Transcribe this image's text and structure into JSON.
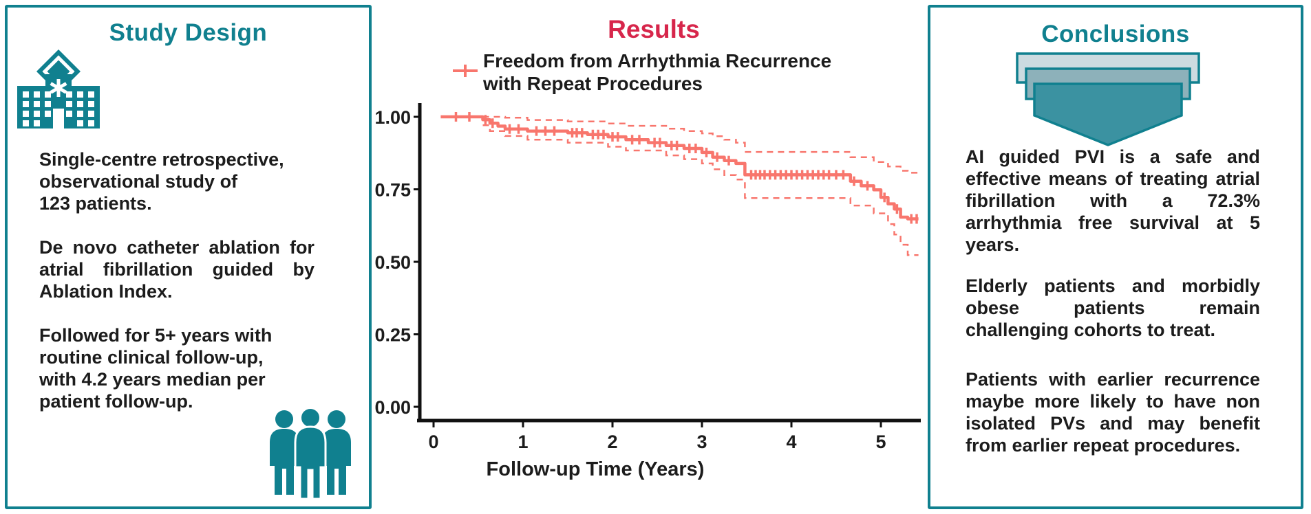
{
  "colors": {
    "teal": "#10808f",
    "crimson": "#d7264b",
    "salmon": "#f8766d",
    "text": "#1c1c1c",
    "axis": "#111111",
    "funnel_top": "#ccdbe0",
    "funnel_mid": "#8db1ba",
    "funnel_bottom": "#3b92a1"
  },
  "left_panel": {
    "title": "Study Design",
    "icons": [
      "hospital-icon",
      "patients-group-icon"
    ],
    "paragraphs": [
      {
        "justify": false,
        "lines": [
          "Single-centre retrospective,",
          "observational study of",
          "123 patients."
        ]
      },
      {
        "justify": true,
        "lines": [
          "De novo catheter ablation for",
          "atrial fibrillation guided by",
          "Ablation Index."
        ]
      },
      {
        "justify": false,
        "lines": [
          "Followed for 5+ years with",
          "routine clinical follow-up,",
          "with 4.2 years median per",
          "patient follow-up."
        ]
      }
    ]
  },
  "results": {
    "title": "Results",
    "legend": {
      "line1": "Freedom from Arrhythmia Recurrence",
      "line2": "with Repeat Procedures"
    }
  },
  "chart_data": {
    "type": "line",
    "subtype": "kaplan-meier-step-with-95ci",
    "series_name": "Freedom from Arrhythmia Recurrence with Repeat Procedures",
    "xlabel": "Follow-up Time (Years)",
    "ylabel": "",
    "x_ticks": [
      0,
      1,
      2,
      3,
      4,
      5
    ],
    "y_tick_labels": [
      "1.00",
      "0.75",
      "0.50",
      "0.25",
      "0.00"
    ],
    "y_tick_values": [
      1.0,
      0.75,
      0.5,
      0.25,
      0.0
    ],
    "xlim": [
      -0.15,
      5.6
    ],
    "ylim": [
      -0.05,
      1.05
    ],
    "grid": false,
    "legend_position": "top-left",
    "survival_at_5_years": 0.723,
    "survival_steps": [
      [
        0.08,
        1.0
      ],
      [
        0.55,
        0.99
      ],
      [
        0.63,
        0.978
      ],
      [
        0.72,
        0.968
      ],
      [
        0.8,
        0.958
      ],
      [
        1.05,
        0.951
      ],
      [
        1.5,
        0.945
      ],
      [
        1.72,
        0.939
      ],
      [
        1.95,
        0.931
      ],
      [
        2.15,
        0.921
      ],
      [
        2.4,
        0.911
      ],
      [
        2.6,
        0.901
      ],
      [
        2.8,
        0.891
      ],
      [
        3.0,
        0.877
      ],
      [
        3.12,
        0.861
      ],
      [
        3.25,
        0.849
      ],
      [
        3.38,
        0.839
      ],
      [
        3.48,
        0.8
      ],
      [
        4.66,
        0.778
      ],
      [
        4.78,
        0.762
      ],
      [
        4.92,
        0.748
      ],
      [
        5.0,
        0.722
      ],
      [
        5.08,
        0.7
      ],
      [
        5.15,
        0.682
      ],
      [
        5.22,
        0.654
      ],
      [
        5.3,
        0.648
      ],
      [
        5.42,
        0.648
      ]
    ],
    "ci_upper_steps": [
      [
        0.55,
        1.0
      ],
      [
        0.8,
        0.997
      ],
      [
        1.05,
        0.989
      ],
      [
        1.5,
        0.984
      ],
      [
        1.95,
        0.977
      ],
      [
        2.15,
        0.969
      ],
      [
        2.6,
        0.959
      ],
      [
        2.8,
        0.951
      ],
      [
        3.0,
        0.943
      ],
      [
        3.12,
        0.933
      ],
      [
        3.25,
        0.921
      ],
      [
        3.38,
        0.911
      ],
      [
        3.48,
        0.879
      ],
      [
        4.66,
        0.861
      ],
      [
        4.92,
        0.844
      ],
      [
        5.08,
        0.829
      ],
      [
        5.22,
        0.814
      ],
      [
        5.3,
        0.807
      ],
      [
        5.42,
        0.807
      ]
    ],
    "ci_lower_steps": [
      [
        0.55,
        0.971
      ],
      [
        0.63,
        0.951
      ],
      [
        0.8,
        0.934
      ],
      [
        1.05,
        0.921
      ],
      [
        1.5,
        0.911
      ],
      [
        1.95,
        0.897
      ],
      [
        2.15,
        0.884
      ],
      [
        2.6,
        0.867
      ],
      [
        2.8,
        0.854
      ],
      [
        3.0,
        0.839
      ],
      [
        3.12,
        0.819
      ],
      [
        3.25,
        0.799
      ],
      [
        3.38,
        0.784
      ],
      [
        3.48,
        0.72
      ],
      [
        4.66,
        0.694
      ],
      [
        4.92,
        0.667
      ],
      [
        5.08,
        0.63
      ],
      [
        5.15,
        0.594
      ],
      [
        5.22,
        0.559
      ],
      [
        5.3,
        0.523
      ],
      [
        5.42,
        0.523
      ]
    ],
    "censor_marks": [
      [
        0.25,
        1.0
      ],
      [
        0.4,
        1.0
      ],
      [
        0.58,
        0.99
      ],
      [
        0.66,
        0.978
      ],
      [
        0.85,
        0.958
      ],
      [
        0.95,
        0.958
      ],
      [
        1.15,
        0.951
      ],
      [
        1.25,
        0.951
      ],
      [
        1.35,
        0.951
      ],
      [
        1.55,
        0.945
      ],
      [
        1.6,
        0.945
      ],
      [
        1.66,
        0.945
      ],
      [
        1.78,
        0.939
      ],
      [
        1.84,
        0.939
      ],
      [
        1.9,
        0.939
      ],
      [
        2.0,
        0.931
      ],
      [
        2.06,
        0.931
      ],
      [
        2.22,
        0.921
      ],
      [
        2.3,
        0.921
      ],
      [
        2.47,
        0.911
      ],
      [
        2.53,
        0.911
      ],
      [
        2.66,
        0.901
      ],
      [
        2.72,
        0.901
      ],
      [
        2.86,
        0.891
      ],
      [
        2.93,
        0.891
      ],
      [
        3.05,
        0.877
      ],
      [
        3.17,
        0.861
      ],
      [
        3.3,
        0.849
      ],
      [
        3.55,
        0.8
      ],
      [
        3.6,
        0.8
      ],
      [
        3.65,
        0.8
      ],
      [
        3.7,
        0.8
      ],
      [
        3.76,
        0.8
      ],
      [
        3.82,
        0.8
      ],
      [
        3.88,
        0.8
      ],
      [
        3.94,
        0.8
      ],
      [
        4.0,
        0.8
      ],
      [
        4.06,
        0.8
      ],
      [
        4.12,
        0.8
      ],
      [
        4.18,
        0.8
      ],
      [
        4.24,
        0.8
      ],
      [
        4.3,
        0.8
      ],
      [
        4.36,
        0.8
      ],
      [
        4.42,
        0.8
      ],
      [
        4.5,
        0.8
      ],
      [
        4.58,
        0.8
      ],
      [
        4.7,
        0.778
      ],
      [
        4.85,
        0.762
      ],
      [
        5.04,
        0.722
      ],
      [
        5.18,
        0.682
      ],
      [
        5.34,
        0.648
      ],
      [
        5.4,
        0.648
      ]
    ]
  },
  "right_panel": {
    "title": "Conclusions",
    "icons": [
      "funnel-icon"
    ],
    "paragraphs": [
      {
        "justify": true,
        "lines": [
          "AI guided PVI is a safe and",
          "effective means of treating atrial",
          "fibrillation with a 72.3%",
          "arrhythmia free survival at 5",
          "years."
        ]
      },
      {
        "justify": true,
        "lines": [
          "Elderly patients and morbidly",
          "obese patients remain",
          "challenging cohorts to treat."
        ]
      },
      {
        "justify": true,
        "lines": [
          "Patients with earlier recurrence",
          "maybe more likely to have non",
          "isolated PVs and may benefit",
          "from earlier repeat procedures."
        ]
      }
    ]
  }
}
